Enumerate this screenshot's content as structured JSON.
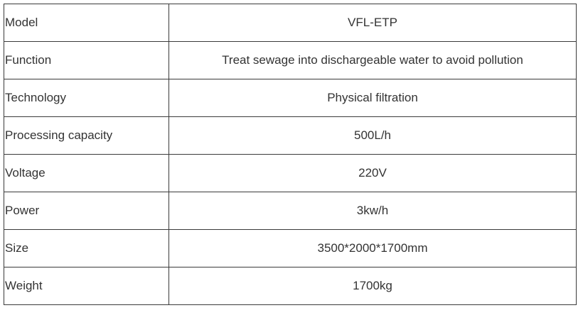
{
  "rows": [
    {
      "label": "Model",
      "value": "VFL-ETP"
    },
    {
      "label": "Function",
      "value": "Treat sewage into dischargeable water to avoid pollution"
    },
    {
      "label": "Technology",
      "value": "Physical filtration"
    },
    {
      "label": "Processing capacity",
      "value": "500L/h"
    },
    {
      "label": "Voltage",
      "value": "220V"
    },
    {
      "label": "Power",
      "value": "3kw/h"
    },
    {
      "label": "Size",
      "value": "3500*2000*1700mm"
    },
    {
      "label": "Weight",
      "value": "1700kg"
    }
  ]
}
